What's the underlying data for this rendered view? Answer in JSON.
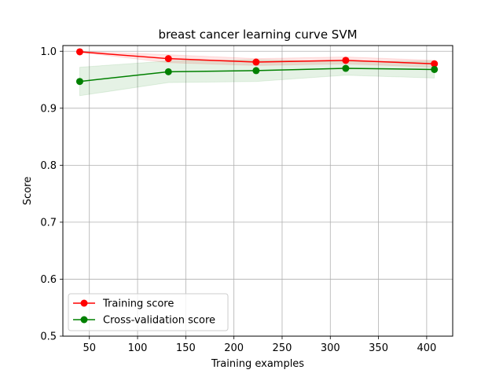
{
  "chart_data": {
    "type": "line",
    "title": "breast cancer learning curve SVM",
    "xlabel": "Training examples",
    "ylabel": "Score",
    "xlim": [
      22.5,
      427
    ],
    "ylim": [
      0.5,
      1.01
    ],
    "xticks": [
      50,
      100,
      150,
      200,
      250,
      300,
      350,
      400
    ],
    "yticks": [
      0.5,
      0.6,
      0.7,
      0.8,
      0.9,
      1.0
    ],
    "xtick_labels": [
      "50",
      "100",
      "150",
      "200",
      "250",
      "300",
      "350",
      "400"
    ],
    "ytick_labels": [
      "0.5",
      "0.6",
      "0.7",
      "0.8",
      "0.9",
      "1.0"
    ],
    "grid": true,
    "legend_position": "lower-left",
    "x": [
      40,
      132,
      223,
      316,
      408
    ],
    "series": [
      {
        "name": "Training score",
        "color": "#ff0000",
        "values": [
          0.999,
          0.987,
          0.981,
          0.984,
          0.978
        ],
        "band_lower": [
          0.998,
          0.98,
          0.975,
          0.978,
          0.972
        ],
        "band_upper": [
          1.0,
          0.994,
          0.987,
          0.99,
          0.984
        ]
      },
      {
        "name": "Cross-validation score",
        "color": "#008000",
        "values": [
          0.947,
          0.964,
          0.966,
          0.97,
          0.968
        ],
        "band_lower": [
          0.922,
          0.945,
          0.947,
          0.958,
          0.953
        ],
        "band_upper": [
          0.972,
          0.983,
          0.985,
          0.982,
          0.983
        ]
      }
    ]
  }
}
